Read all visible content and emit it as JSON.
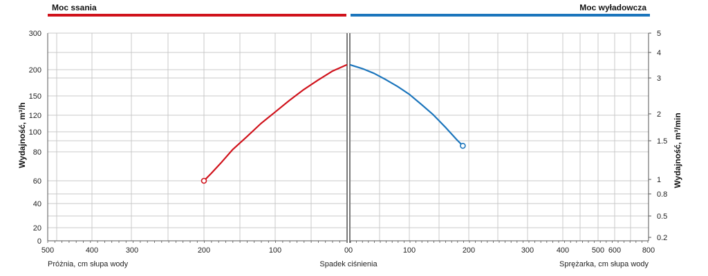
{
  "chart_data": {
    "type": "line",
    "header": {
      "left": {
        "label": "Moc ssania",
        "color": "#d0121b"
      },
      "right": {
        "label": "Moc wyładowcza",
        "color": "#1b75bc"
      }
    },
    "ylabel_left": "Wydajność, m³/h",
    "ylabel_right": "Wydajność, m³/min",
    "xlabel_left": "Próżnia, cm słupa wody",
    "xlabel_center": "Spadek ciśnienia",
    "xlabel_right": "Sprężarka, cm słupa wody",
    "y_left_ticks": [
      "0",
      "20",
      "40",
      "60",
      "80",
      "100",
      "120",
      "150",
      "200",
      "300"
    ],
    "y_right_ticks": [
      "0.2",
      "0.5",
      "0.8",
      "1",
      "1.5",
      "2",
      "3",
      "4",
      "5"
    ],
    "x_left_ticks": [
      "500",
      "400",
      "300",
      "200",
      "100",
      "0"
    ],
    "x_right_ticks": [
      "0",
      "100",
      "200",
      "300",
      "400",
      "500",
      "600",
      "800"
    ],
    "grid": true,
    "series": [
      {
        "name": "Moc ssania",
        "color": "#d0121b",
        "x": [
          200,
          190,
          175,
          160,
          140,
          120,
          100,
          80,
          60,
          40,
          20,
          0
        ],
        "y": [
          60,
          65,
          73,
          82,
          95,
          110,
          125,
          143,
          162,
          180,
          197,
          213
        ],
        "end_marker": "open-circle"
      },
      {
        "name": "Moc wyładowcza",
        "color": "#1b75bc",
        "x": [
          0,
          20,
          40,
          60,
          80,
          100,
          120,
          140,
          160,
          180,
          190
        ],
        "y": [
          213,
          203,
          193,
          181,
          168,
          153,
          137,
          121,
          106,
          92,
          86
        ],
        "end_marker": "open-circle"
      }
    ]
  }
}
